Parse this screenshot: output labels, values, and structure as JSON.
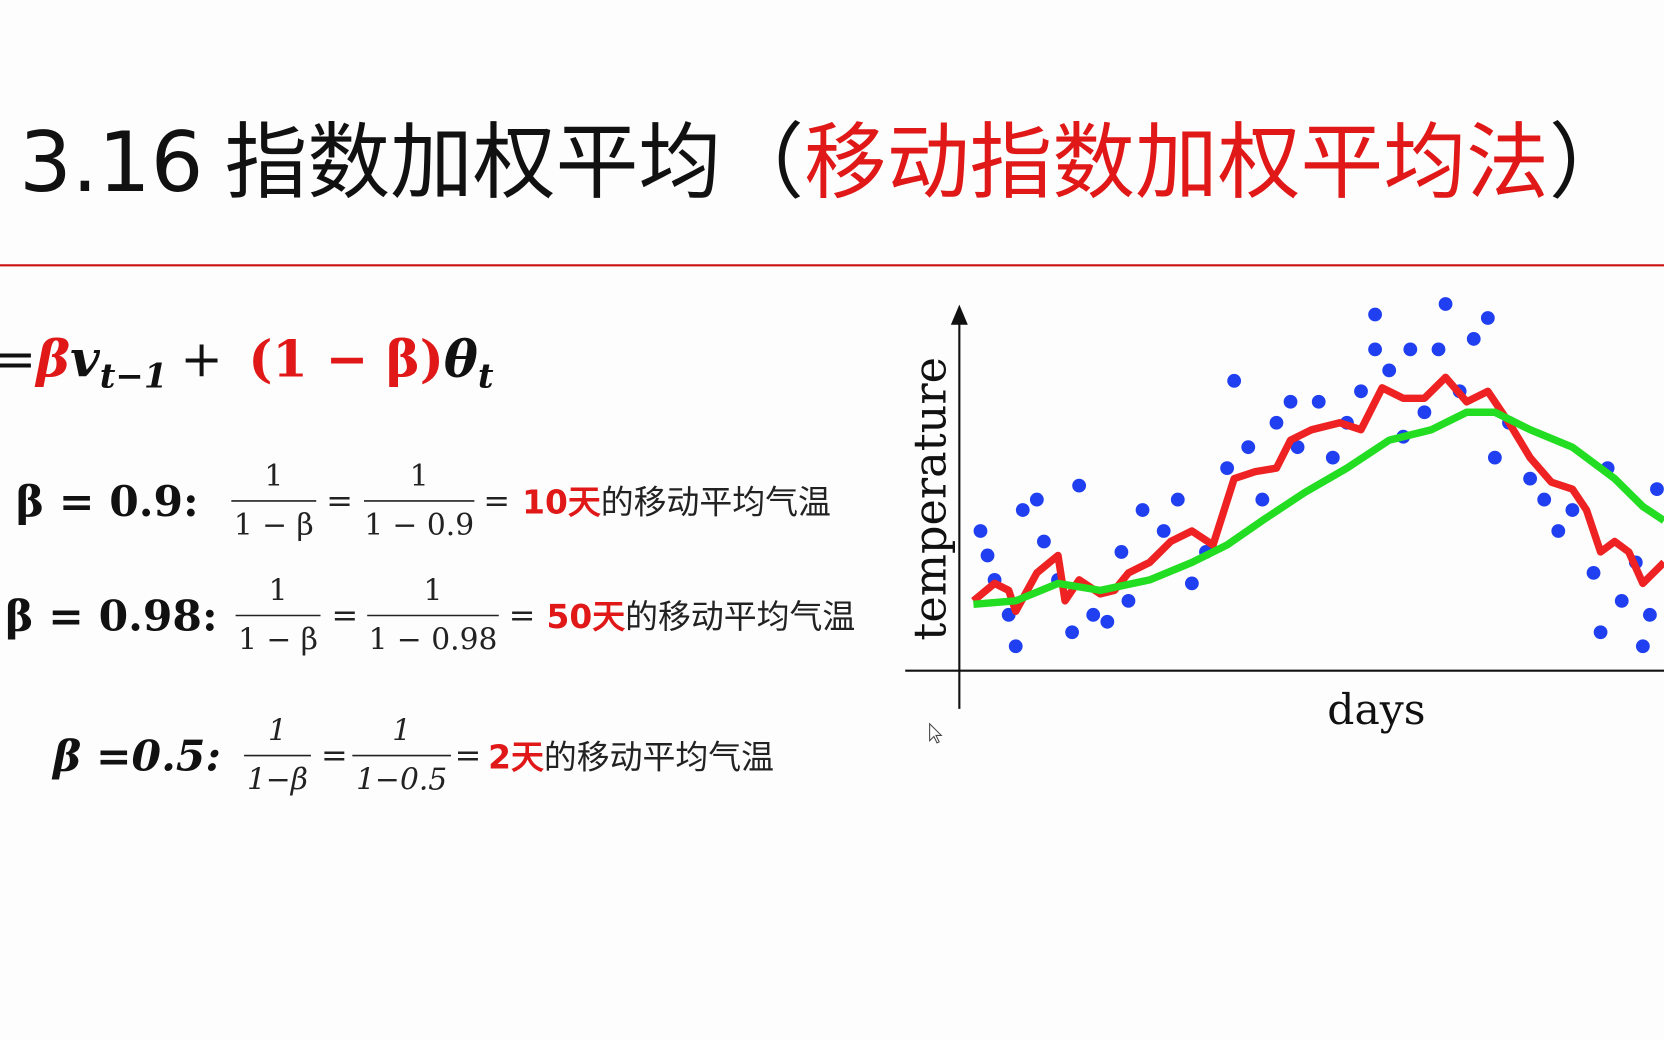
{
  "header": {
    "title_number": "3.16",
    "title_main": "指数加权平均",
    "paren_open": "（",
    "title_highlight": "移动指数加权平均法",
    "paren_close": "）"
  },
  "formula": {
    "eq": "=",
    "beta": "β",
    "v": "v",
    "v_sub": "t−1",
    "plus": "+",
    "term": "(1 − β)",
    "theta": "θ",
    "theta_sub": "t"
  },
  "examples": [
    {
      "label": "β = 0.9:",
      "num1": "1",
      "den1": "1 − β",
      "eq": "=",
      "num2": "1",
      "den2": "1 − 0.9",
      "days": "10天",
      "text": "的移动平均气温"
    },
    {
      "label": "β = 0.98:",
      "num1": "1",
      "den1": "1 − β",
      "eq": "=",
      "num2": "1",
      "den2": "1 − 0.98",
      "days": "50天",
      "text": "的移动平均气温"
    },
    {
      "label": "β =0.5:",
      "num1": "1",
      "den1": "1−β",
      "eq": "=",
      "num2": "1",
      "den2": "1−0.5",
      "days": "2天",
      "text": "的移动平均气温"
    }
  ],
  "chart": {
    "type": "scatter",
    "xlabel": "days",
    "ylabel": "temperature",
    "xlim": [
      0,
      100
    ],
    "ylim": [
      0,
      110
    ],
    "points": {
      "color": "#1f3ff0",
      "x": [
        3,
        4,
        5,
        7,
        8,
        9,
        11,
        12,
        14,
        16,
        17,
        19,
        21,
        23,
        24,
        26,
        29,
        31,
        33,
        35,
        38,
        39,
        41,
        43,
        45,
        47,
        48,
        51,
        53,
        55,
        57,
        59,
        59,
        61,
        63,
        64,
        66,
        68,
        69,
        71,
        73,
        75,
        76,
        78,
        81,
        83,
        85,
        87,
        90,
        91,
        92,
        94,
        96,
        97,
        99,
        98
      ],
      "y": [
        40,
        33,
        26,
        16,
        7,
        46,
        49,
        37,
        26,
        11,
        53,
        16,
        14,
        34,
        20,
        46,
        40,
        49,
        25,
        34,
        58,
        83,
        64,
        49,
        71,
        77,
        64,
        77,
        61,
        71,
        80,
        92,
        102,
        86,
        67,
        92,
        74,
        92,
        105,
        80,
        95,
        101,
        61,
        71,
        55,
        49,
        40,
        46,
        28,
        11,
        58,
        20,
        31,
        7,
        52,
        16
      ]
    },
    "lines": [
      {
        "color": "#ee2222",
        "x": [
          2,
          5,
          7,
          8,
          11,
          14,
          15,
          17,
          20,
          22,
          24,
          27,
          30,
          33,
          36,
          39,
          42,
          45,
          47,
          50,
          54,
          57,
          60,
          63,
          66,
          69,
          72,
          75,
          78,
          81,
          84,
          87,
          89,
          91,
          93,
          95,
          97,
          100
        ],
        "y": [
          20,
          25,
          23,
          17,
          28,
          33,
          20,
          26,
          22,
          23,
          28,
          31,
          37,
          40,
          36,
          55,
          57,
          58,
          66,
          69,
          71,
          69,
          81,
          78,
          78,
          84,
          77,
          80,
          71,
          61,
          54,
          52,
          46,
          34,
          37,
          34,
          25,
          31
        ]
      },
      {
        "color": "#22dd22",
        "x": [
          2,
          8,
          14,
          20,
          27,
          33,
          38,
          43,
          49,
          55,
          61,
          67,
          72,
          76,
          81,
          87,
          93,
          97,
          100
        ],
        "y": [
          19,
          20,
          25,
          23,
          26,
          31,
          36,
          43,
          51,
          58,
          66,
          69,
          74,
          74,
          69,
          64,
          55,
          47,
          43
        ]
      }
    ]
  }
}
